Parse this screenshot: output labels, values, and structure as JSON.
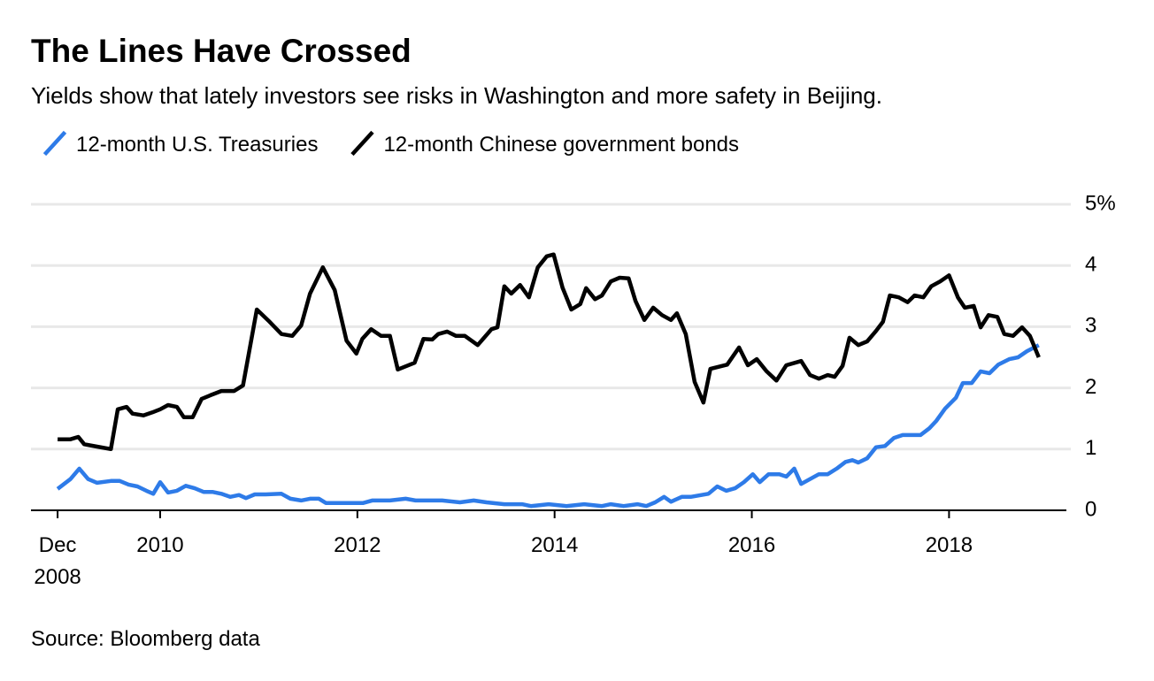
{
  "chart_data": {
    "type": "line",
    "title": "The Lines Have Crossed",
    "subtitle": "Yields show that lately investors see risks in Washington and more safety in Beijing.",
    "source": "Source: Bloomberg data",
    "xlim": [
      2008.69,
      2019.19
    ],
    "ylim": [
      0,
      5
    ],
    "xticks": [
      {
        "value": 2008.96,
        "label": "Dec 2008"
      },
      2010,
      2012,
      2014,
      2016,
      2018
    ],
    "yticks": [
      0,
      1,
      2,
      3,
      4,
      {
        "value": 5,
        "label": "5%"
      }
    ],
    "grid": true,
    "legend": "top-left",
    "series": [
      {
        "name": "12-month U.S. Treasuries",
        "color": "#2e7be8",
        "x": [
          2008.96,
          2009.09,
          2009.18,
          2009.27,
          2009.36,
          2009.5,
          2009.59,
          2009.68,
          2009.77,
          2009.86,
          2009.93,
          2010.0,
          2010.08,
          2010.17,
          2010.26,
          2010.35,
          2010.44,
          2010.53,
          2010.62,
          2010.71,
          2010.8,
          2010.87,
          2010.96,
          2011.07,
          2011.23,
          2011.32,
          2011.43,
          2011.52,
          2011.61,
          2011.68,
          2011.88,
          2012.06,
          2012.15,
          2012.33,
          2012.49,
          2012.59,
          2012.86,
          2013.04,
          2013.18,
          2013.31,
          2013.49,
          2013.67,
          2013.76,
          2013.94,
          2014.12,
          2014.3,
          2014.48,
          2014.57,
          2014.7,
          2014.84,
          2014.93,
          2015.02,
          2015.11,
          2015.18,
          2015.29,
          2015.38,
          2015.56,
          2015.65,
          2015.74,
          2015.83,
          2015.92,
          2016.01,
          2016.08,
          2016.17,
          2016.28,
          2016.35,
          2016.43,
          2016.5,
          2016.59,
          2016.68,
          2016.77,
          2016.86,
          2016.95,
          2017.02,
          2017.08,
          2017.17,
          2017.26,
          2017.35,
          2017.44,
          2017.53,
          2017.71,
          2017.8,
          2017.87,
          2017.96,
          2018.07,
          2018.14,
          2018.23,
          2018.32,
          2018.41,
          2018.5,
          2018.61,
          2018.7,
          2018.79,
          2018.91
        ],
        "values": [
          0.35,
          0.51,
          0.68,
          0.51,
          0.45,
          0.48,
          0.48,
          0.42,
          0.39,
          0.32,
          0.27,
          0.46,
          0.29,
          0.32,
          0.4,
          0.36,
          0.3,
          0.3,
          0.27,
          0.22,
          0.25,
          0.2,
          0.26,
          0.26,
          0.27,
          0.19,
          0.16,
          0.19,
          0.19,
          0.12,
          0.12,
          0.12,
          0.16,
          0.16,
          0.19,
          0.16,
          0.16,
          0.13,
          0.16,
          0.13,
          0.1,
          0.1,
          0.07,
          0.1,
          0.07,
          0.1,
          0.07,
          0.1,
          0.07,
          0.1,
          0.07,
          0.13,
          0.22,
          0.14,
          0.22,
          0.22,
          0.27,
          0.39,
          0.32,
          0.36,
          0.46,
          0.59,
          0.46,
          0.59,
          0.59,
          0.55,
          0.68,
          0.43,
          0.51,
          0.59,
          0.59,
          0.68,
          0.79,
          0.82,
          0.78,
          0.85,
          1.03,
          1.05,
          1.18,
          1.23,
          1.23,
          1.34,
          1.46,
          1.66,
          1.84,
          2.08,
          2.08,
          2.27,
          2.24,
          2.38,
          2.47,
          2.5,
          2.6,
          2.7
        ]
      },
      {
        "name": "12-month Chinese government bonds",
        "color": "#000000",
        "x": [
          2008.96,
          2009.09,
          2009.17,
          2009.23,
          2009.36,
          2009.5,
          2009.57,
          2009.66,
          2009.72,
          2009.83,
          2009.92,
          2010.0,
          2010.08,
          2010.17,
          2010.24,
          2010.33,
          2010.42,
          2010.51,
          2010.62,
          2010.75,
          2010.84,
          2010.98,
          2011.11,
          2011.23,
          2011.34,
          2011.43,
          2011.52,
          2011.65,
          2011.77,
          2011.89,
          2011.99,
          2012.05,
          2012.14,
          2012.24,
          2012.33,
          2012.41,
          2012.58,
          2012.67,
          2012.76,
          2012.82,
          2012.91,
          2013.0,
          2013.09,
          2013.22,
          2013.36,
          2013.42,
          2013.49,
          2013.56,
          2013.65,
          2013.74,
          2013.83,
          2013.92,
          2013.99,
          2014.08,
          2014.17,
          2014.26,
          2014.32,
          2014.41,
          2014.48,
          2014.57,
          2014.66,
          2014.75,
          2014.82,
          2014.91,
          2015.0,
          2015.09,
          2015.18,
          2015.24,
          2015.33,
          2015.42,
          2015.51,
          2015.58,
          2015.75,
          2015.87,
          2015.96,
          2016.05,
          2016.15,
          2016.25,
          2016.35,
          2016.5,
          2016.59,
          2016.68,
          2016.77,
          2016.84,
          2016.92,
          2016.99,
          2017.08,
          2017.17,
          2017.26,
          2017.33,
          2017.4,
          2017.49,
          2017.58,
          2017.65,
          2017.74,
          2017.82,
          2017.91,
          2018.0,
          2018.09,
          2018.16,
          2018.25,
          2018.32,
          2018.4,
          2018.49,
          2018.56,
          2018.65,
          2018.74,
          2018.82,
          2018.91
        ],
        "values": [
          1.16,
          1.16,
          1.2,
          1.08,
          1.04,
          1.0,
          1.65,
          1.69,
          1.58,
          1.55,
          1.6,
          1.65,
          1.72,
          1.69,
          1.52,
          1.52,
          1.82,
          1.88,
          1.95,
          1.95,
          2.04,
          3.28,
          3.08,
          2.88,
          2.85,
          3.02,
          3.54,
          3.97,
          3.6,
          2.77,
          2.56,
          2.8,
          2.96,
          2.85,
          2.85,
          2.3,
          2.41,
          2.8,
          2.79,
          2.88,
          2.92,
          2.85,
          2.85,
          2.7,
          2.96,
          2.99,
          3.66,
          3.54,
          3.68,
          3.48,
          3.97,
          4.15,
          4.18,
          3.64,
          3.28,
          3.37,
          3.63,
          3.45,
          3.51,
          3.74,
          3.8,
          3.79,
          3.42,
          3.11,
          3.31,
          3.19,
          3.11,
          3.22,
          2.88,
          2.1,
          1.76,
          2.31,
          2.38,
          2.66,
          2.37,
          2.47,
          2.27,
          2.12,
          2.37,
          2.44,
          2.21,
          2.15,
          2.21,
          2.18,
          2.36,
          2.82,
          2.7,
          2.76,
          2.93,
          3.08,
          3.51,
          3.48,
          3.4,
          3.51,
          3.48,
          3.66,
          3.74,
          3.84,
          3.48,
          3.31,
          3.34,
          2.99,
          3.19,
          3.16,
          2.88,
          2.85,
          2.99,
          2.85,
          2.5
        ]
      }
    ]
  }
}
